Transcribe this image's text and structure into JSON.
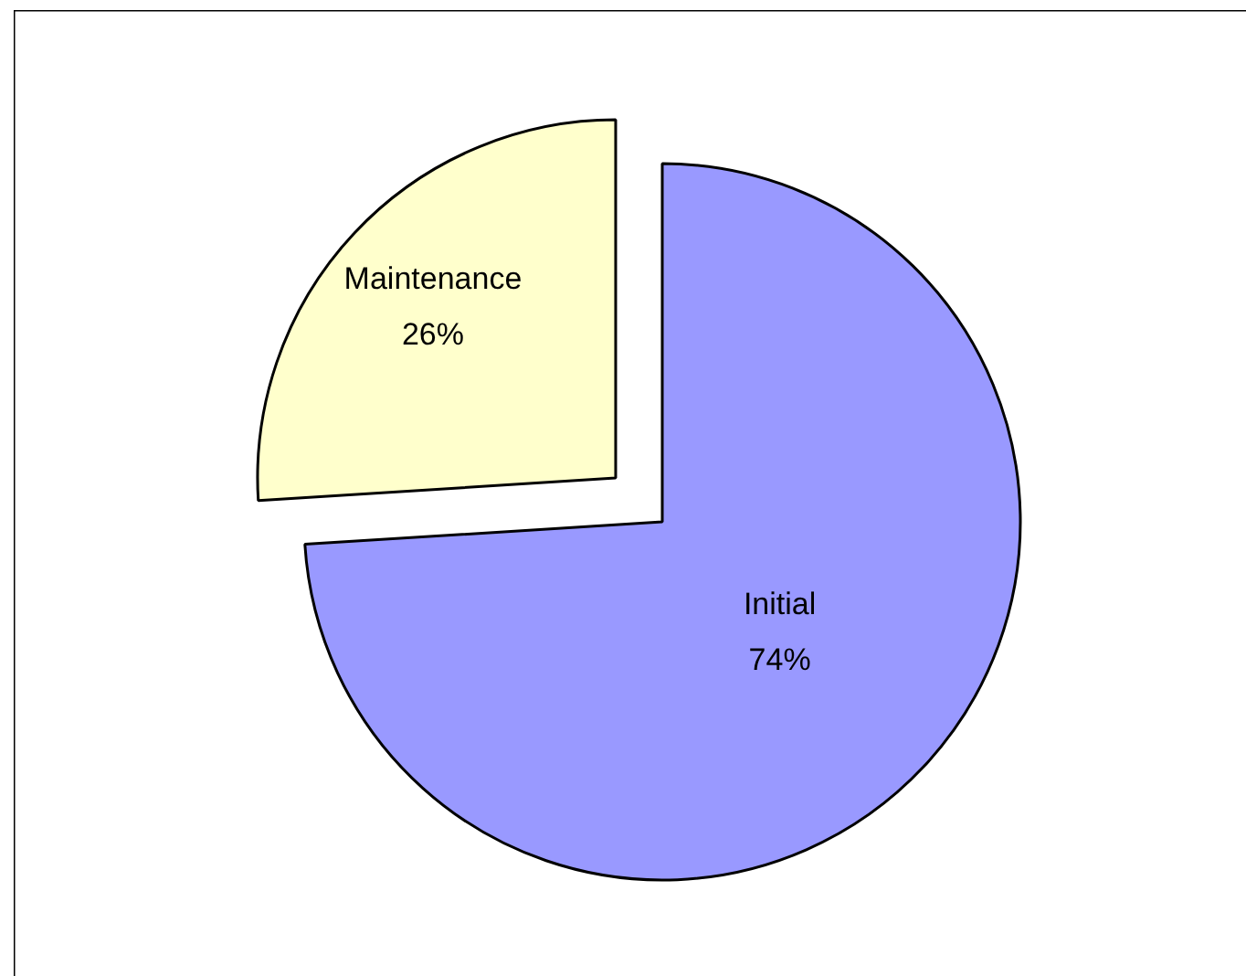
{
  "chart_data": {
    "type": "pie",
    "categories": [
      "Initial",
      "Maintenance"
    ],
    "values": [
      74,
      26
    ],
    "colors": [
      "#9999ff",
      "#ffffcc"
    ],
    "value_labels": [
      "74%",
      "26%"
    ]
  }
}
